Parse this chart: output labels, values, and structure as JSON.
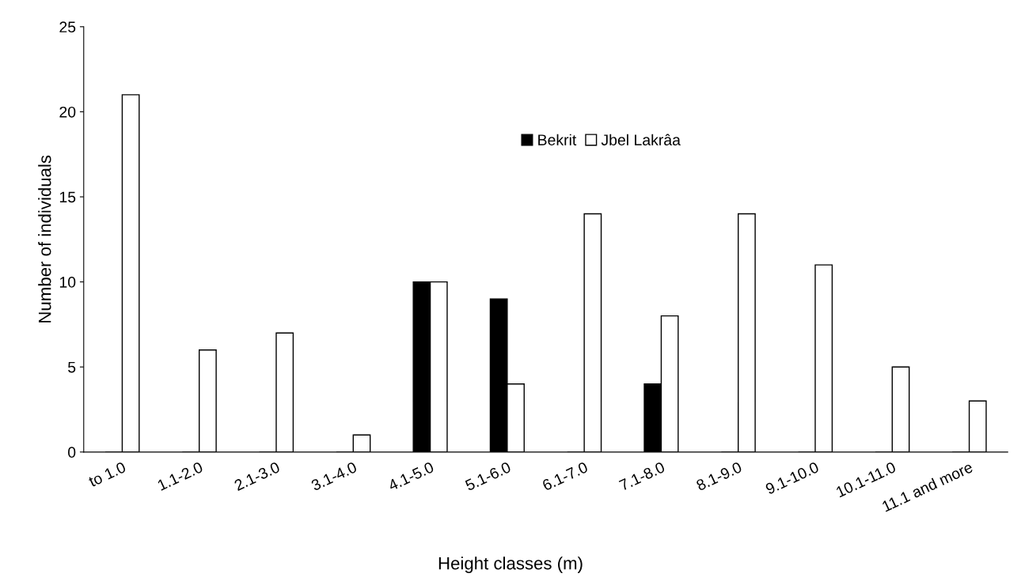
{
  "chart_data": {
    "type": "bar",
    "xlabel": "Height classes (m)",
    "ylabel": "Number of individuals",
    "categories": [
      "to 1.0",
      "1.1-2.0",
      "2.1-3.0",
      "3.1-4.0",
      "4.1-5.0",
      "5.1-6.0",
      "6.1-7.0",
      "7.1-8.0",
      "8.1-9.0",
      "9.1-10.0",
      "10.1-11.0",
      "11.1 and more"
    ],
    "series": [
      {
        "name": "Bekrit",
        "color": "#000000",
        "values": [
          0,
          0,
          0,
          0,
          10,
          9,
          0,
          4,
          0,
          0,
          0,
          0
        ]
      },
      {
        "name": "Jbel Lakrâa",
        "color": "#ffffff",
        "values": [
          21,
          6,
          7,
          1,
          10,
          4,
          14,
          8,
          14,
          11,
          5,
          3
        ]
      }
    ],
    "ylim": [
      0,
      25
    ],
    "yticks": [
      0,
      5,
      10,
      15,
      20,
      25
    ],
    "grid": false,
    "legend": "top right"
  }
}
